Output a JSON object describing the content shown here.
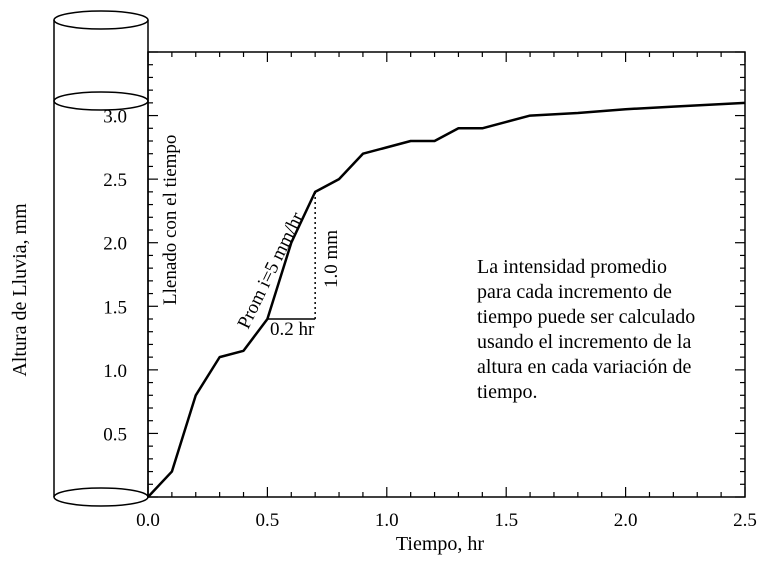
{
  "chart_data": {
    "type": "line",
    "title": "",
    "xlabel": "Tiempo, hr",
    "ylabel": "Altura de Lluvia, mm",
    "xlim": [
      0,
      2.5
    ],
    "ylim": [
      0,
      3.5
    ],
    "x_ticks": [
      "0.0",
      "0.5",
      "1.0",
      "1.5",
      "2.0",
      "2.5"
    ],
    "y_ticks": [
      "0.5",
      "1.0",
      "1.5",
      "2.0",
      "2.5",
      "3.0"
    ],
    "grid": false,
    "series": [
      {
        "x": [
          0.0,
          0.1,
          0.2,
          0.3,
          0.4,
          0.5,
          0.6,
          0.7,
          0.8,
          0.9,
          1.0,
          1.1,
          1.2,
          1.3,
          1.4,
          1.5,
          1.6,
          1.8,
          2.0,
          2.2,
          2.5
        ],
        "y": [
          0.0,
          0.2,
          0.8,
          1.1,
          1.15,
          1.4,
          2.0,
          2.4,
          2.5,
          2.7,
          2.75,
          2.8,
          2.8,
          2.9,
          2.9,
          2.95,
          3.0,
          3.02,
          3.05,
          3.07,
          3.1
        ]
      }
    ],
    "annotations": {
      "vertical_label": "Llenado con el tiempo",
      "slope_label": "Prom i=5 mm/hr",
      "dx_label": "0.2 hr",
      "dy_label": "1.0 mm",
      "triangle": {
        "x0": 0.5,
        "y0": 1.4,
        "x1": 0.7,
        "y1": 2.4
      },
      "note_lines": [
        "La intensidad promedio",
        "para cada incremento de",
        "tiempo puede ser calculado",
        "usando el incremento de la",
        "altura en cada variación de",
        "tiempo."
      ]
    }
  }
}
